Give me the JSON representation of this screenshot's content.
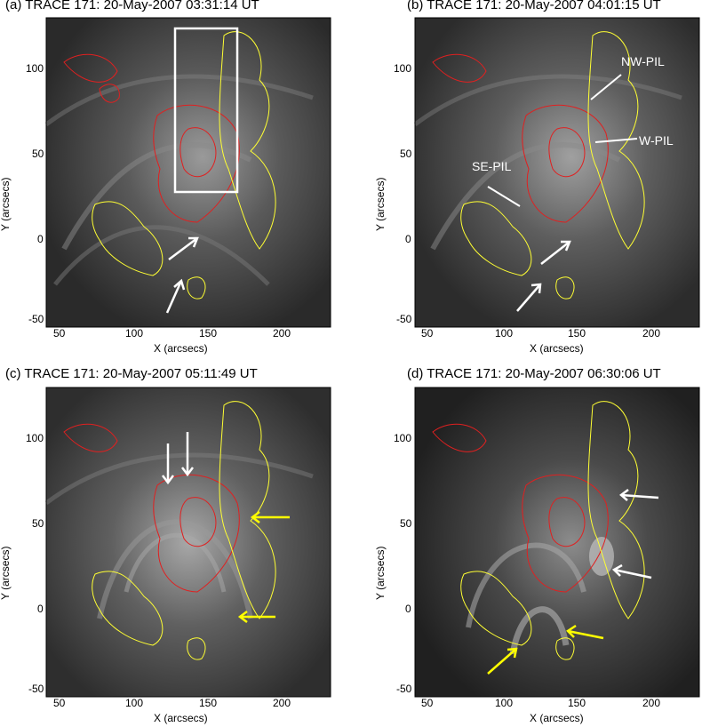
{
  "figure": {
    "panels": [
      {
        "id": "a",
        "title": "(a) TRACE 171: 20-May-2007 03:31:14 UT",
        "xlabel": "X (arcsecs)",
        "ylabel": "Y (arcsecs)",
        "xticks": [
          "50",
          "100",
          "150",
          "200"
        ],
        "yticks": [
          "-50",
          "0",
          "50",
          "100"
        ],
        "annotations": []
      },
      {
        "id": "b",
        "title": "(b) TRACE 171: 20-May-2007 04:01:15 UT",
        "xlabel": "X (arcsecs)",
        "ylabel": "Y (arcsecs)",
        "xticks": [
          "50",
          "100",
          "150",
          "200"
        ],
        "yticks": [
          "-50",
          "0",
          "50",
          "100"
        ],
        "annotations": [
          "NW-PIL",
          "W-PIL",
          "SE-PIL"
        ]
      },
      {
        "id": "c",
        "title": "(c) TRACE 171: 20-May-2007 05:11:49 UT",
        "xlabel": "X (arcsecs)",
        "ylabel": "Y (arcsecs)",
        "xticks": [
          "50",
          "100",
          "150",
          "200"
        ],
        "yticks": [
          "-50",
          "0",
          "50",
          "100"
        ],
        "annotations": []
      },
      {
        "id": "d",
        "title": "(d) TRACE 171: 20-May-2007 06:30:06 UT",
        "xlabel": "X (arcsecs)",
        "ylabel": "Y (arcsecs)",
        "xticks": [
          "50",
          "100",
          "150",
          "200"
        ],
        "yticks": [
          "-50",
          "0",
          "50",
          "100"
        ],
        "annotations": []
      }
    ],
    "colors": {
      "contour_positive": "#ffff33",
      "contour_negative": "#e02020",
      "arrow_white": "#ffffff",
      "arrow_yellow": "#ffff00",
      "box": "#ffffff"
    }
  }
}
